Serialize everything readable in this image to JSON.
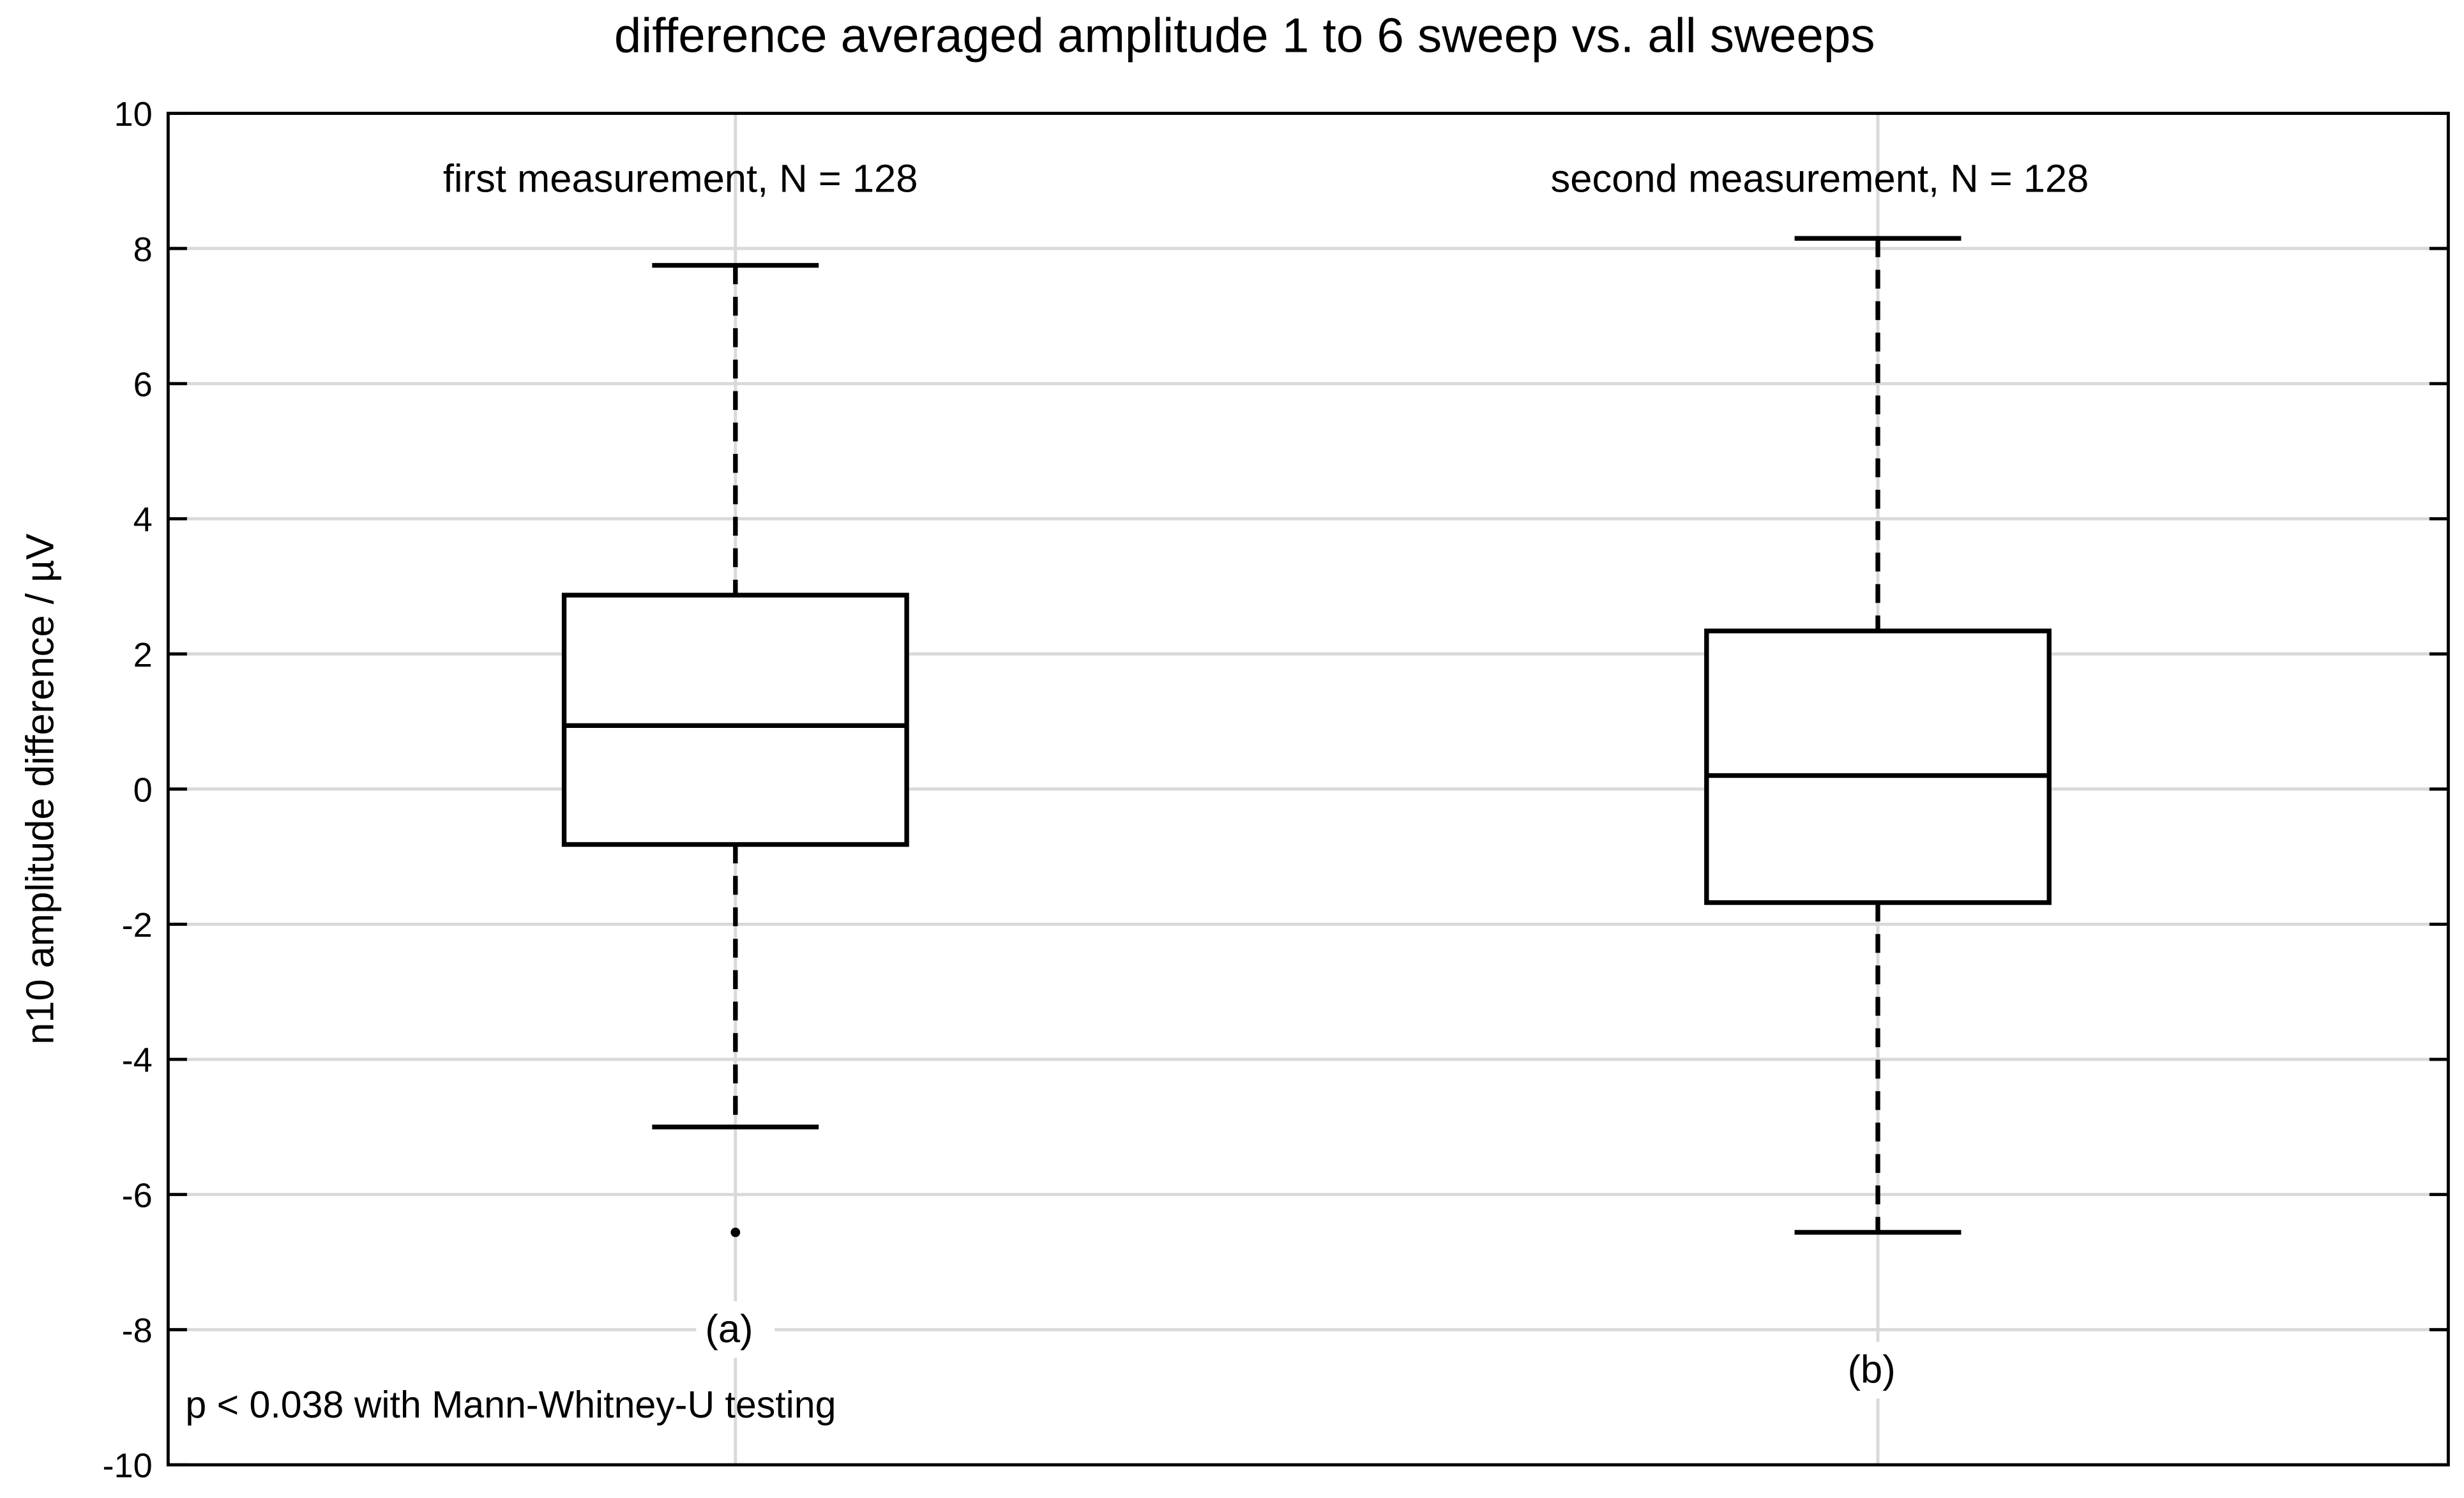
{
  "chart_data": {
    "type": "box",
    "title": "difference averaged amplitude 1 to 6 sweep vs. all sweeps",
    "xlabel": "",
    "ylabel": "n10 amplitude difference / µV",
    "ylim": [
      -10,
      10
    ],
    "yticks": [
      -10,
      -8,
      -6,
      -4,
      -2,
      0,
      2,
      4,
      6,
      8,
      10
    ],
    "grid": true,
    "categories": [
      "(a)",
      "(b)"
    ],
    "boxes": [
      {
        "label": "(a)",
        "group_label": "first measurement, N = 128",
        "whisker_low": -5.0,
        "q1": -0.82,
        "median": 0.94,
        "q3": 2.87,
        "whisker_high": 7.75,
        "outliers": [
          -6.56
        ]
      },
      {
        "label": "(b)",
        "group_label": "second measurement, N = 128",
        "whisker_low": -6.56,
        "q1": -1.68,
        "median": 0.2,
        "q3": 2.34,
        "whisker_high": 8.15,
        "outliers": []
      }
    ],
    "annotation": "p < 0.038 with Mann-Whitney-U testing",
    "colors": {
      "box": "#000000",
      "grid": "#d9d9d9"
    }
  }
}
